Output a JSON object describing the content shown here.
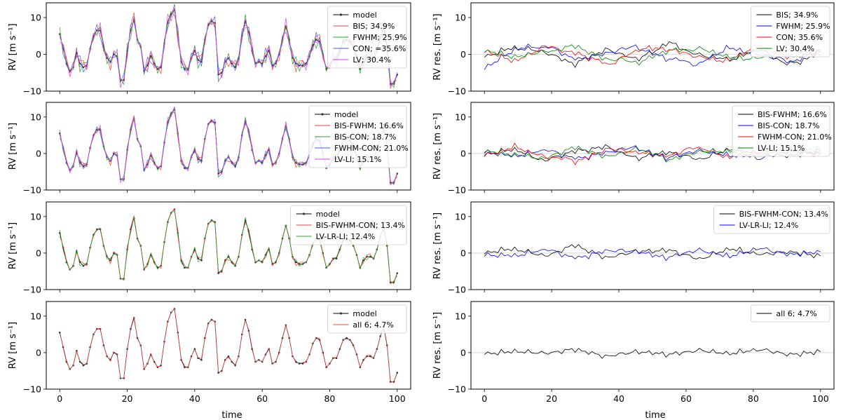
{
  "figure": {
    "xlabel": "time",
    "left_ylabel": "RV [m s⁻¹]",
    "right_ylabel": "RV res. [m s⁻¹]",
    "xticks": [
      0,
      20,
      40,
      60,
      80,
      100
    ],
    "yticks": [
      -10,
      0,
      10
    ]
  },
  "chart_data": [
    {
      "type": "line",
      "panel": "row1-left",
      "xlim": [
        -4,
        104
      ],
      "ylim": [
        -10,
        14
      ],
      "ylabel": "RV [m s⁻¹]",
      "xlabel": "",
      "legend_position": "top-right",
      "series": [
        {
          "name": "model",
          "color": "#000000",
          "markers": true
        },
        {
          "name": "BIS; 34.9%",
          "color": "#e8463c"
        },
        {
          "name": "FWHM; 25.9%",
          "color": "#2ca02c"
        },
        {
          "name": "CON; =35.6%",
          "color": "#4a5ae8"
        },
        {
          "name": "LV; 30.4%",
          "color": "#e040e0"
        }
      ]
    },
    {
      "type": "line",
      "panel": "row1-right",
      "xlim": [
        -4,
        104
      ],
      "ylim": [
        -10,
        14
      ],
      "ylabel": "RV res. [m s⁻¹]",
      "xlabel": "",
      "legend_position": "top-right",
      "series": [
        {
          "name": "BIS; 34.9%",
          "color": "#000000"
        },
        {
          "name": "FWHM; 25.9%",
          "color": "#0000ff"
        },
        {
          "name": "CON; 35.6%",
          "color": "#ff0000"
        },
        {
          "name": "LV; 30.4%",
          "color": "#008000"
        }
      ]
    },
    {
      "type": "line",
      "panel": "row2-left",
      "xlim": [
        -4,
        104
      ],
      "ylim": [
        -10,
        14
      ],
      "ylabel": "RV [m s⁻¹]",
      "xlabel": "",
      "legend_position": "top-right",
      "series": [
        {
          "name": "model",
          "color": "#000000",
          "markers": true
        },
        {
          "name": "BIS-FWHM; 16.6%",
          "color": "#e8463c"
        },
        {
          "name": "BIS-CON; 18.7%",
          "color": "#2ca02c"
        },
        {
          "name": "FWHM-CON; 21.0%",
          "color": "#4a5ae8"
        },
        {
          "name": "LV-LI; 15.1%",
          "color": "#e040e0"
        }
      ]
    },
    {
      "type": "line",
      "panel": "row2-right",
      "xlim": [
        -4,
        104
      ],
      "ylim": [
        -10,
        14
      ],
      "ylabel": "RV res. [m s⁻¹]",
      "xlabel": "",
      "legend_position": "top-right",
      "series": [
        {
          "name": "BIS-FWHM; 16.6%",
          "color": "#000000"
        },
        {
          "name": "BIS-CON; 18.7%",
          "color": "#0000ff"
        },
        {
          "name": "FWHM-CON; 21.0%",
          "color": "#ff0000"
        },
        {
          "name": "LV-LI; 15.1%",
          "color": "#008000"
        }
      ]
    },
    {
      "type": "line",
      "panel": "row3-left",
      "xlim": [
        -4,
        104
      ],
      "ylim": [
        -10,
        14
      ],
      "ylabel": "RV [m s⁻¹]",
      "xlabel": "",
      "legend_position": "top-right",
      "series": [
        {
          "name": "model",
          "color": "#000000",
          "markers": true
        },
        {
          "name": "BIS-FWHM-CON; 13.4%",
          "color": "#e8463c"
        },
        {
          "name": "LV-LR-LI; 12.4%",
          "color": "#2ca02c"
        }
      ]
    },
    {
      "type": "line",
      "panel": "row3-right",
      "xlim": [
        -4,
        104
      ],
      "ylim": [
        -10,
        14
      ],
      "ylabel": "RV res. [m s⁻¹]",
      "xlabel": "",
      "legend_position": "top-right",
      "series": [
        {
          "name": "BIS-FWHM-CON; 13.4%",
          "color": "#000000"
        },
        {
          "name": "LV-LR-LI; 12.4%",
          "color": "#0000ff"
        }
      ]
    },
    {
      "type": "line",
      "panel": "row4-left",
      "xlim": [
        -4,
        104
      ],
      "ylim": [
        -10,
        14
      ],
      "ylabel": "RV [m s⁻¹]",
      "xlabel": "time",
      "legend_position": "top-right",
      "series": [
        {
          "name": "model",
          "color": "#000000",
          "markers": true
        },
        {
          "name": "all 6; 4.7%",
          "color": "#e8463c"
        }
      ]
    },
    {
      "type": "line",
      "panel": "row4-right",
      "xlim": [
        -4,
        104
      ],
      "ylim": [
        -10,
        14
      ],
      "ylabel": "RV res. [m s⁻¹]",
      "xlabel": "time",
      "legend_position": "top-right",
      "series": [
        {
          "name": "all 6; 4.7%",
          "color": "#000000"
        }
      ]
    }
  ],
  "model": {
    "x": [
      0,
      1,
      2,
      3,
      4,
      5,
      6,
      7,
      8,
      9,
      10,
      11,
      12,
      13,
      14,
      15,
      16,
      17,
      18,
      19,
      20,
      21,
      22,
      23,
      24,
      25,
      26,
      27,
      28,
      29,
      30,
      31,
      32,
      33,
      34,
      35,
      36,
      37,
      38,
      39,
      40,
      41,
      42,
      43,
      44,
      45,
      46,
      47,
      48,
      49,
      50,
      51,
      52,
      53,
      54,
      55,
      56,
      57,
      58,
      59,
      60,
      61,
      62,
      63,
      64,
      65,
      66,
      67,
      68,
      69,
      70,
      71,
      72,
      73,
      74,
      75,
      76,
      77,
      78,
      79,
      80,
      81,
      82,
      83,
      84,
      85,
      86,
      87,
      88,
      89,
      90,
      91,
      92,
      93,
      94,
      95,
      96,
      97,
      98,
      99,
      100
    ],
    "y": [
      5.5,
      1.5,
      -2.5,
      -4.5,
      -3.5,
      0.5,
      -2.5,
      -3.5,
      -3,
      1.5,
      5,
      6.5,
      6.5,
      2,
      -1,
      -2,
      0,
      -0.5,
      -7,
      -7,
      1,
      6.5,
      9.5,
      4,
      2,
      -4.5,
      -3,
      -0.5,
      -2.5,
      -4,
      -3.5,
      3,
      8.5,
      11,
      12,
      5.5,
      -2,
      -4,
      -4,
      -1,
      1,
      -1.5,
      -2,
      4,
      8,
      9,
      8.5,
      -5.5,
      -5,
      -2,
      -1,
      -2.5,
      -3.5,
      -1,
      5,
      9,
      6,
      1,
      -2.5,
      -2,
      -2.5,
      -0.5,
      1,
      -3,
      -2.5,
      0,
      4,
      7.5,
      4,
      -1,
      -2.5,
      -3,
      -3,
      -2.5,
      -0.5,
      2.5,
      4,
      3.5,
      0,
      -4,
      -3,
      -1.5,
      -1.5,
      1,
      3.5,
      4,
      3.5,
      2,
      -0.5,
      -4,
      -2,
      -1,
      -1,
      -1.5,
      1,
      4.5,
      7,
      2,
      -8,
      -8,
      -5.5
    ]
  },
  "left_offsets": [
    [
      [
        -1.5,
        0.8,
        1.2,
        -0.8,
        0.5
      ],
      [
        1.2,
        -1.5,
        0.8,
        0.6,
        -1.0
      ],
      [
        -0.8,
        1.4,
        -1.2,
        -0.5,
        1.1
      ],
      [
        0.6,
        -0.9,
        1.5,
        -1.3,
        0.4
      ]
    ],
    [
      [
        -0.8,
        0.4,
        0.6,
        -0.4,
        0.3
      ],
      [
        0.6,
        -0.7,
        0.4,
        0.3,
        -0.5
      ],
      [
        -0.4,
        0.7,
        -0.6,
        -0.3,
        0.5
      ],
      [
        0.3,
        -0.5,
        0.8,
        -0.6,
        0.2
      ]
    ],
    [
      [
        -0.6,
        0.3,
        0.5,
        -0.3,
        0.2
      ],
      [
        0.5,
        -0.6,
        0.3,
        0.2,
        -0.4
      ]
    ],
    [
      [
        -0.2,
        0.15,
        0.25,
        -0.15,
        0.1
      ]
    ]
  ],
  "residuals": [
    [
      [
        -1.0,
        2.5,
        0.5,
        -3.0,
        1.5,
        -1.5,
        3.5,
        0.0,
        -2.0,
        2.0,
        -4.0,
        1.0
      ],
      [
        -4.0,
        1.5,
        3.0,
        -2.0,
        0.5,
        2.5,
        -1.5,
        -3.0,
        2.0,
        0.0,
        -2.5,
        1.5
      ],
      [
        1.0,
        -2.0,
        2.5,
        0.5,
        -3.5,
        1.5,
        2.0,
        -1.0,
        -2.0,
        3.0,
        -1.0,
        0.5
      ],
      [
        1.5,
        -1.0,
        1.0,
        2.5,
        -1.5,
        -2.5,
        1.0,
        2.0,
        -1.0,
        -1.5,
        2.0,
        -0.5
      ]
    ],
    [
      [
        -0.5,
        1.5,
        -2.5,
        1.0,
        2.0,
        -1.5,
        0.5,
        -2.0,
        1.5,
        0.0,
        -1.0,
        1.0
      ],
      [
        0.5,
        -1.0,
        1.5,
        -2.0,
        0.5,
        2.0,
        -1.5,
        1.0,
        -0.5,
        -1.5,
        1.0,
        0.0
      ],
      [
        -0.5,
        2.0,
        -1.0,
        -2.5,
        1.5,
        0.5,
        -1.0,
        2.5,
        -1.5,
        0.5,
        1.0,
        -0.5
      ],
      [
        1.0,
        -0.5,
        -1.5,
        2.0,
        -1.0,
        1.5,
        -2.0,
        0.5,
        1.0,
        -1.0,
        0.5,
        1.5
      ]
    ],
    [
      [
        0.0,
        1.5,
        -1.0,
        2.5,
        -1.5,
        0.5,
        1.0,
        -2.0,
        1.5,
        -0.5,
        0.5,
        -1.0
      ],
      [
        -0.5,
        -1.0,
        1.5,
        -2.0,
        1.0,
        0.5,
        -1.5,
        1.0,
        -1.0,
        1.5,
        -0.5,
        0.5
      ]
    ],
    [
      [
        -0.5,
        0.5,
        -0.2,
        1.0,
        -1.2,
        0.3,
        -0.6,
        0.8,
        -0.4,
        1.2,
        -0.8,
        0.4
      ]
    ]
  ]
}
